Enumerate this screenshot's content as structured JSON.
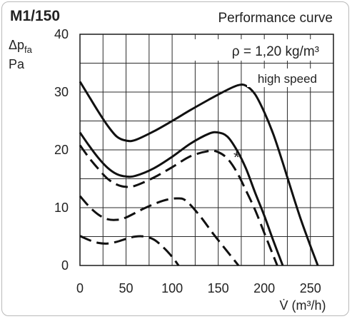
{
  "chart_data": {
    "type": "line",
    "title": "M1/150",
    "subtitle": "Performance curve",
    "density_label": "ρ = 1,20 kg/m³",
    "speed_label": "high speed",
    "ylabel_line1": "Δp",
    "ylabel_sub": "fa",
    "ylabel_line2": "Pa",
    "xlabel": "V̇ (m³/h)",
    "marker": "*",
    "xlim": [
      0,
      275
    ],
    "ylim": [
      0,
      40
    ],
    "x_ticks": [
      0,
      50,
      100,
      150,
      200,
      250
    ],
    "x_tick_labels": [
      "0",
      "50",
      "100",
      "150",
      "200",
      "250"
    ],
    "y_ticks": [
      0,
      10,
      20,
      30,
      40
    ],
    "y_tick_labels": [
      "0",
      "10",
      "20",
      "30",
      "40"
    ],
    "grid": true,
    "series": [
      {
        "style": "solid",
        "points": [
          [
            0,
            31.8
          ],
          [
            10,
            29.2
          ],
          [
            20,
            26.6
          ],
          [
            30,
            24.2
          ],
          [
            40,
            22.3
          ],
          [
            50,
            21.6
          ],
          [
            60,
            21.7
          ],
          [
            80,
            23.2
          ],
          [
            100,
            25.0
          ],
          [
            120,
            26.9
          ],
          [
            140,
            28.7
          ],
          [
            160,
            30.4
          ],
          [
            172,
            31.2
          ],
          [
            180,
            31.1
          ],
          [
            190,
            29.6
          ],
          [
            200,
            26.5
          ],
          [
            210,
            22.6
          ],
          [
            220,
            17.8
          ],
          [
            230,
            12.7
          ],
          [
            240,
            7.8
          ],
          [
            250,
            3.4
          ],
          [
            258,
            0
          ]
        ]
      },
      {
        "style": "solid",
        "points": [
          [
            0,
            23.0
          ],
          [
            10,
            20.7
          ],
          [
            20,
            18.6
          ],
          [
            30,
            16.9
          ],
          [
            40,
            15.8
          ],
          [
            50,
            15.4
          ],
          [
            60,
            15.5
          ],
          [
            80,
            16.8
          ],
          [
            100,
            18.8
          ],
          [
            120,
            21.1
          ],
          [
            140,
            22.8
          ],
          [
            150,
            23.0
          ],
          [
            160,
            22.3
          ],
          [
            170,
            20.0
          ],
          [
            180,
            16.8
          ],
          [
            190,
            12.6
          ],
          [
            200,
            8.6
          ],
          [
            210,
            4.2
          ],
          [
            220,
            0
          ]
        ]
      },
      {
        "style": "dashed",
        "points": [
          [
            0,
            20.8
          ],
          [
            10,
            18.6
          ],
          [
            20,
            16.7
          ],
          [
            30,
            15.0
          ],
          [
            40,
            14.0
          ],
          [
            50,
            13.6
          ],
          [
            60,
            13.8
          ],
          [
            80,
            15.2
          ],
          [
            100,
            17.0
          ],
          [
            120,
            18.9
          ],
          [
            140,
            19.8
          ],
          [
            150,
            19.6
          ],
          [
            160,
            18.5
          ],
          [
            170,
            16.2
          ],
          [
            180,
            13.0
          ],
          [
            190,
            9.6
          ],
          [
            200,
            5.6
          ],
          [
            210,
            1.6
          ],
          [
            214,
            0
          ]
        ]
      },
      {
        "style": "dashed",
        "points": [
          [
            0,
            12.0
          ],
          [
            10,
            10.2
          ],
          [
            20,
            8.8
          ],
          [
            30,
            8.0
          ],
          [
            40,
            7.9
          ],
          [
            50,
            8.3
          ],
          [
            70,
            9.9
          ],
          [
            90,
            11.2
          ],
          [
            105,
            11.6
          ],
          [
            115,
            11.2
          ],
          [
            130,
            8.6
          ],
          [
            145,
            5.4
          ],
          [
            160,
            2.4
          ],
          [
            172,
            0
          ]
        ]
      },
      {
        "style": "dashed",
        "points": [
          [
            0,
            5.1
          ],
          [
            10,
            4.4
          ],
          [
            20,
            3.9
          ],
          [
            30,
            3.8
          ],
          [
            40,
            4.1
          ],
          [
            50,
            4.6
          ],
          [
            60,
            5.0
          ],
          [
            70,
            5.0
          ],
          [
            80,
            4.5
          ],
          [
            90,
            3.2
          ],
          [
            100,
            1.5
          ],
          [
            107,
            0
          ]
        ]
      }
    ]
  }
}
